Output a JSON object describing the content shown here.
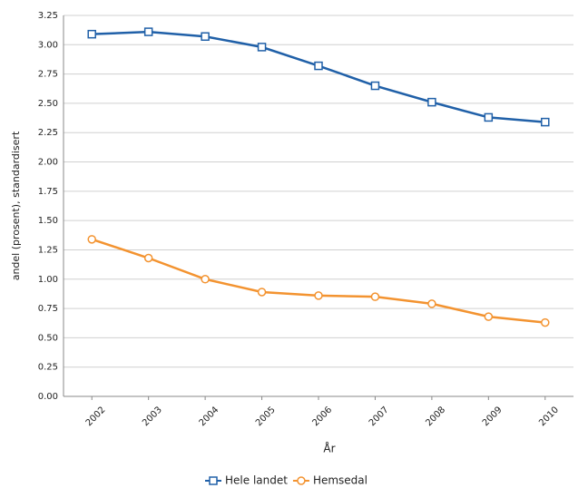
{
  "chart_data": {
    "type": "line",
    "x_label": "År",
    "y_label": "andel (prosent), standardisert",
    "categories": [
      "2002",
      "2003",
      "2004",
      "2005",
      "2006",
      "2007",
      "2008",
      "2009",
      "2010"
    ],
    "series": [
      {
        "name": "Hele landet",
        "color": "#2060a8",
        "marker": "square",
        "values": [
          3.09,
          3.11,
          3.07,
          2.98,
          2.82,
          2.65,
          2.51,
          2.38,
          2.34
        ]
      },
      {
        "name": "Hemsedal",
        "color": "#f39330",
        "marker": "circle",
        "values": [
          1.34,
          1.18,
          1.0,
          0.89,
          0.86,
          0.85,
          0.79,
          0.68,
          0.63
        ]
      }
    ],
    "ylim": [
      0,
      3.25
    ],
    "yticks": [
      {
        "value": 0,
        "label": "0.00"
      },
      0.25,
      {
        "value": 0.5,
        "label": "0.50"
      },
      0.75,
      {
        "value": 1,
        "label": "1.00"
      },
      1.25,
      {
        "value": 1.5,
        "label": "1.50"
      },
      1.75,
      {
        "value": 2,
        "label": "2.00"
      },
      2.25,
      {
        "value": 2.5,
        "label": "2.50"
      },
      2.75,
      {
        "value": 3,
        "label": "3.00"
      },
      3.25
    ],
    "grid": true,
    "legend": "bottom"
  }
}
